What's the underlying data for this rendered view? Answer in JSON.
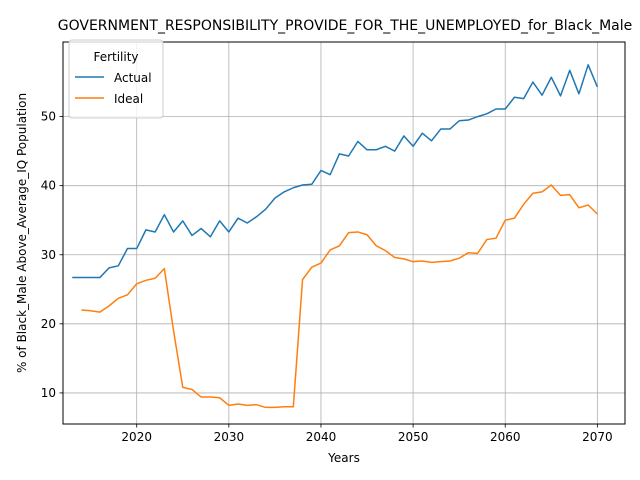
{
  "chart_data": {
    "type": "line",
    "title": "GOVERNMENT_RESPONSIBILITY_PROVIDE_FOR_THE_UNEMPLOYED_for_Black_Male",
    "xlabel": "Years",
    "ylabel": "% of Black_Male Above_Average_IQ Population",
    "xlim": [
      2012,
      2073
    ],
    "ylim": [
      5.5,
      60.8
    ],
    "x_ticks": [
      2020,
      2030,
      2040,
      2050,
      2060,
      2070
    ],
    "y_ticks": [
      10,
      20,
      30,
      40,
      50
    ],
    "grid": true,
    "legend": {
      "title": "Fertility",
      "placement": "top-left"
    },
    "series": [
      {
        "name": "Actual",
        "color": "#1f77b4",
        "x": [
          2013,
          2014,
          2015,
          2016,
          2017,
          2018,
          2019,
          2020,
          2021,
          2022,
          2023,
          2024,
          2025,
          2026,
          2027,
          2028,
          2029,
          2030,
          2031,
          2032,
          2033,
          2034,
          2035,
          2036,
          2037,
          2038,
          2039,
          2040,
          2041,
          2042,
          2043,
          2044,
          2045,
          2046,
          2047,
          2048,
          2049,
          2050,
          2051,
          2052,
          2053,
          2054,
          2055,
          2056,
          2057,
          2058,
          2059,
          2060,
          2061,
          2062,
          2063,
          2064,
          2065,
          2066,
          2067,
          2068,
          2069,
          2070
        ],
        "y": [
          26.7,
          26.7,
          26.7,
          26.7,
          28.1,
          28.4,
          30.9,
          30.9,
          33.6,
          33.3,
          35.8,
          33.3,
          34.9,
          32.8,
          33.8,
          32.6,
          34.9,
          33.3,
          35.3,
          34.6,
          35.5,
          36.6,
          38.2,
          39.1,
          39.7,
          40.1,
          40.2,
          42.2,
          41.6,
          44.6,
          44.3,
          46.4,
          45.2,
          45.2,
          45.7,
          45.0,
          47.2,
          45.7,
          47.6,
          46.5,
          48.2,
          48.2,
          49.4,
          49.5,
          50.0,
          50.4,
          51.1,
          51.1,
          52.8,
          52.6,
          55.0,
          53.1,
          55.7,
          53.0,
          56.7,
          53.3,
          57.5,
          54.3
        ]
      },
      {
        "name": "Ideal",
        "color": "#ff7f0e",
        "x": [
          2014,
          2015,
          2016,
          2017,
          2018,
          2019,
          2020,
          2021,
          2022,
          2023,
          2024,
          2025,
          2026,
          2027,
          2028,
          2029,
          2030,
          2031,
          2032,
          2033,
          2034,
          2035,
          2036,
          2037,
          2038,
          2039,
          2040,
          2041,
          2042,
          2043,
          2044,
          2045,
          2046,
          2047,
          2048,
          2049,
          2050,
          2051,
          2052,
          2053,
          2054,
          2055,
          2056,
          2057,
          2058,
          2059,
          2060,
          2061,
          2062,
          2063,
          2064,
          2065,
          2066,
          2067,
          2068,
          2069,
          2070
        ],
        "y": [
          22.0,
          21.9,
          21.7,
          22.6,
          23.7,
          24.2,
          25.8,
          26.3,
          26.6,
          28.0,
          19.0,
          10.8,
          10.5,
          9.4,
          9.4,
          9.3,
          8.2,
          8.4,
          8.2,
          8.3,
          7.9,
          7.9,
          8.0,
          8.0,
          26.4,
          28.2,
          28.8,
          30.7,
          31.3,
          33.2,
          33.3,
          32.9,
          31.3,
          30.6,
          29.6,
          29.4,
          29.0,
          29.1,
          28.9,
          29.0,
          29.1,
          29.5,
          30.3,
          30.2,
          32.2,
          32.4,
          35.0,
          35.3,
          37.3,
          38.9,
          39.1,
          40.1,
          38.6,
          38.7,
          36.8,
          37.2,
          35.9
        ]
      }
    ]
  }
}
